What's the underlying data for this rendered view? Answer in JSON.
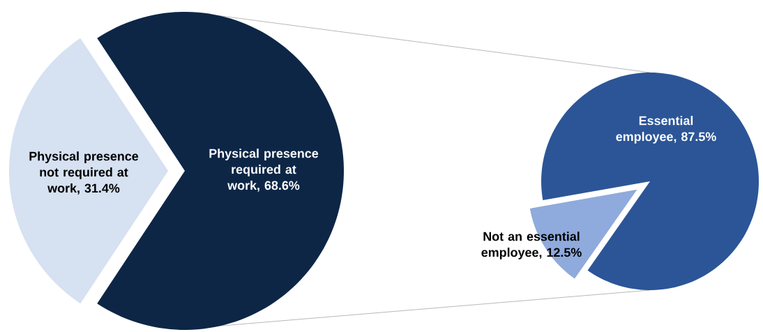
{
  "chart_data": [
    {
      "type": "pie",
      "categories": [
        "Physical presence not required at work, 31.4%",
        "Physical presence required at work, 68.6%"
      ],
      "values": [
        31.4,
        68.6
      ],
      "colors": [
        "#d6e1f1",
        "#0d2646"
      ]
    },
    {
      "type": "pie",
      "categories": [
        "Essential employee, 87.5%",
        "Not an essential employee, 12.5%"
      ],
      "values": [
        87.5,
        12.5
      ],
      "colors": [
        "#2b5597",
        "#8faadc"
      ]
    }
  ]
}
